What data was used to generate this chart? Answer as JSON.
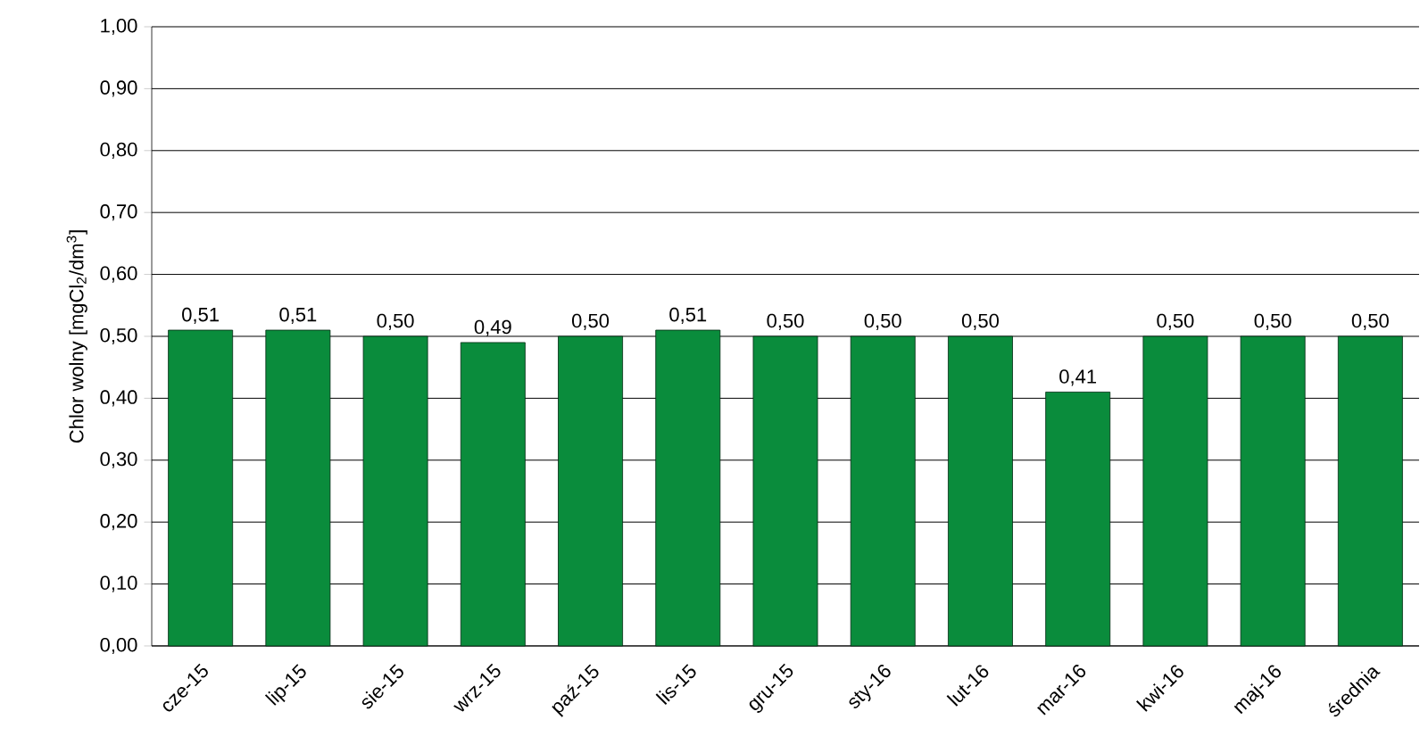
{
  "chart_data": {
    "type": "bar",
    "ylabel": "Chlor wolny [mgCl$_{2}$/dm$^{3}$]",
    "categories": [
      "cze-15",
      "lip-15",
      "sie-15",
      "wrz-15",
      "paź-15",
      "lis-15",
      "gru-15",
      "sty-16",
      "lut-16",
      "mar-16",
      "kwi-16",
      "maj-16",
      "średnia"
    ],
    "values": [
      0.51,
      0.51,
      0.5,
      0.49,
      0.5,
      0.51,
      0.5,
      0.5,
      0.5,
      0.41,
      0.5,
      0.5,
      0.5
    ],
    "value_labels": [
      "0,51",
      "0,51",
      "0,50",
      "0,49",
      "0,50",
      "0,51",
      "0,50",
      "0,50",
      "0,50",
      "0,41",
      "0,50",
      "0,50",
      "0,50"
    ],
    "color": "#0a8c3c",
    "ylim": [
      0,
      1
    ],
    "yticks": [
      {
        "value": 0,
        "label": "0,00"
      },
      {
        "value": 0.1,
        "label": "0,10"
      },
      {
        "value": 0.2,
        "label": "0,20"
      },
      {
        "value": 0.3,
        "label": "0,30"
      },
      {
        "value": 0.4,
        "label": "0,40"
      },
      {
        "value": 0.5,
        "label": "0,50"
      },
      {
        "value": 0.6,
        "label": "0,60"
      },
      {
        "value": 0.7,
        "label": "0,70"
      },
      {
        "value": 0.8,
        "label": "0,80"
      },
      {
        "value": 0.9,
        "label": "0,90"
      },
      {
        "value": 1,
        "label": "1,00"
      }
    ],
    "grid": "y"
  }
}
